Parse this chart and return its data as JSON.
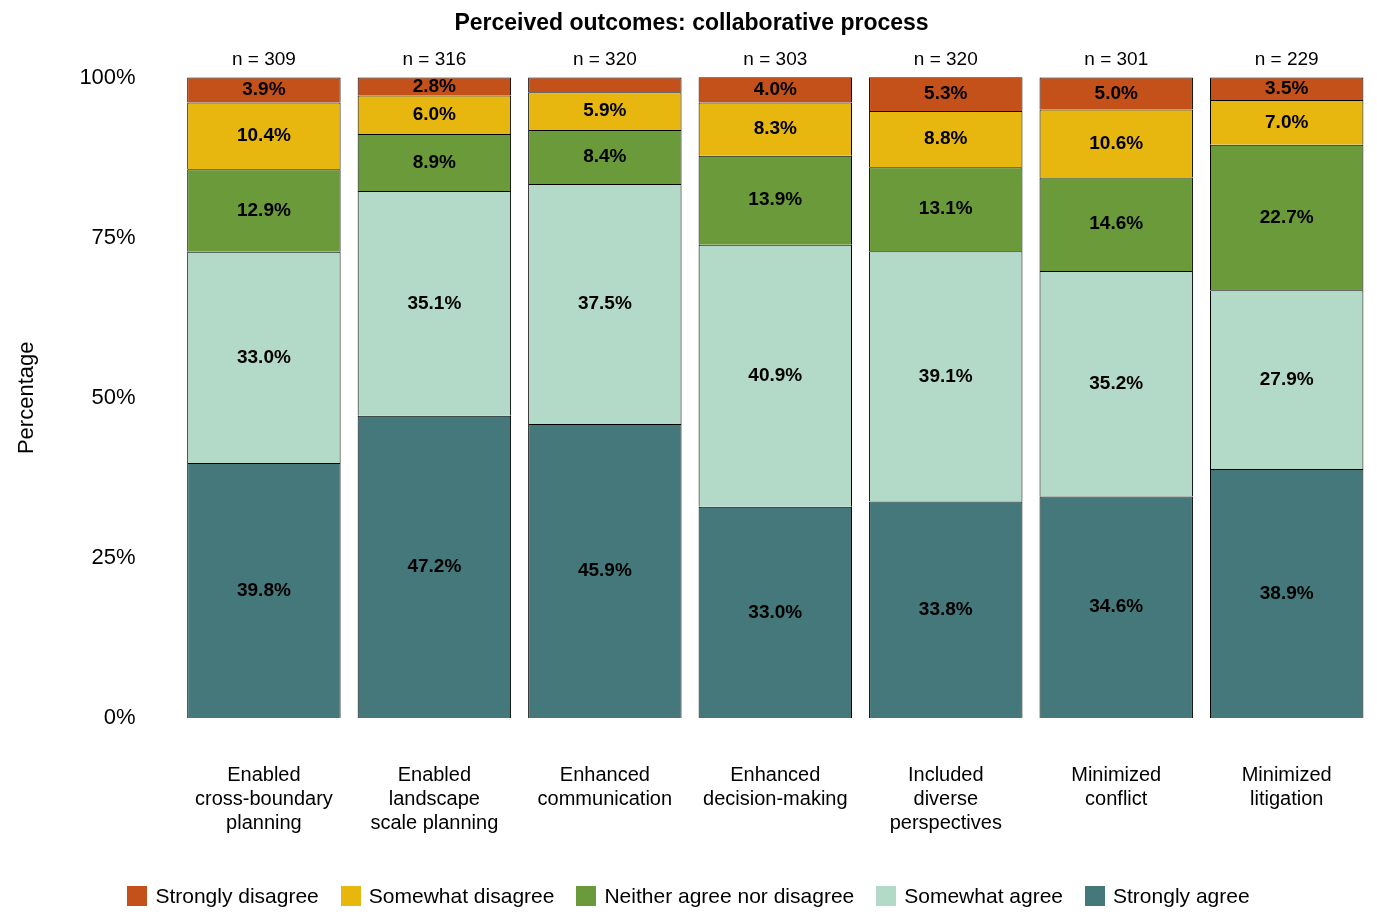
{
  "chart_data": {
    "type": "bar",
    "title": "Perceived outcomes: collaborative process",
    "ylabel": "Percentage",
    "stacked": true,
    "grid": false,
    "legend": "bottom",
    "categories": [
      "Enabled cross-boundary planning",
      "Enabled landscape scale planning",
      "Enhanced communication",
      "Enhanced decision-making",
      "Included diverse perspectives",
      "Minimized conflict",
      "Minimized litigation"
    ],
    "ylim": [
      0,
      100
    ],
    "yticks": [
      {
        "value": 0,
        "label": "0%"
      },
      {
        "value": 25,
        "label": "25%"
      },
      {
        "value": 50,
        "label": "50%"
      },
      {
        "value": 75,
        "label": "75%"
      },
      {
        "value": 100,
        "label": "100%"
      }
    ],
    "series": [
      {
        "name": "Strongly agree",
        "color": "#44787a",
        "values": [
          39.8,
          47.2,
          45.9,
          33.0,
          33.8,
          34.6,
          38.9
        ],
        "value_labels": [
          "39.8%",
          "47.2%",
          "45.9%",
          "33.0%",
          "33.8%",
          "34.6%",
          "38.9%"
        ]
      },
      {
        "name": "Somewhat agree",
        "color": "#b3d9c8",
        "values": [
          33.0,
          35.1,
          37.5,
          40.9,
          39.1,
          35.2,
          27.9
        ],
        "value_labels": [
          "33.0%",
          "35.1%",
          "37.5%",
          "40.9%",
          "39.1%",
          "35.2%",
          "27.9%"
        ]
      },
      {
        "name": "Neither agree nor disagree",
        "color": "#6a9a3a",
        "values": [
          12.9,
          8.9,
          8.4,
          13.9,
          13.1,
          14.6,
          22.7
        ],
        "value_labels": [
          "12.9%",
          "8.9%",
          "8.4%",
          "13.9%",
          "13.1%",
          "14.6%",
          "22.7%"
        ]
      },
      {
        "name": "Somewhat disagree",
        "color": "#e8b70f",
        "values": [
          10.4,
          6.0,
          5.9,
          8.3,
          8.8,
          10.6,
          7.0
        ],
        "value_labels": [
          "10.4%",
          "6.0%",
          "5.9%",
          "8.3%",
          "8.8%",
          "10.6%",
          "7.0%"
        ]
      },
      {
        "name": "Strongly disagree",
        "color": "#c4501a",
        "values": [
          3.9,
          2.8,
          2.3,
          4.0,
          5.3,
          5.0,
          3.5
        ],
        "value_labels": [
          "3.9%",
          "2.8%",
          null,
          "4.0%",
          "5.3%",
          "5.0%",
          "3.5%"
        ]
      }
    ],
    "annotations": [
      {
        "text": "n = 309",
        "x": "Enabled cross-boundary planning",
        "y": 100
      },
      {
        "text": "n = 316",
        "x": "Enabled landscape scale planning",
        "y": 100
      },
      {
        "text": "n = 320",
        "x": "Enhanced communication",
        "y": 100
      },
      {
        "text": "n = 303",
        "x": "Enhanced decision-making",
        "y": 100
      },
      {
        "text": "n = 320",
        "x": "Included diverse perspectives",
        "y": 100
      },
      {
        "text": "n = 301",
        "x": "Minimized conflict",
        "y": 100
      },
      {
        "text": "n = 229",
        "x": "Minimized litigation",
        "y": 100
      }
    ]
  }
}
